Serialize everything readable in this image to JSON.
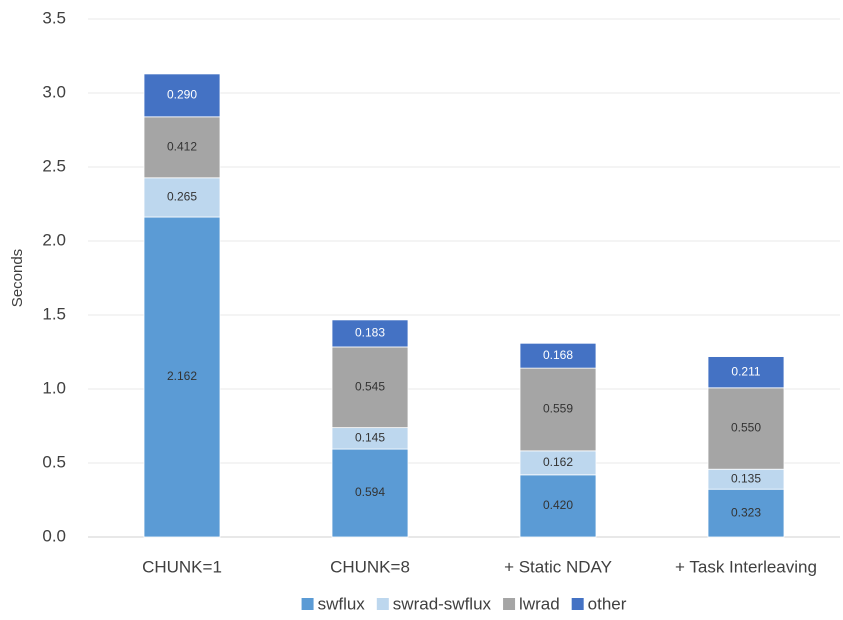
{
  "chart_data": {
    "type": "stacked_bar",
    "y_label": "Seconds",
    "categories": [
      "CHUNK=1",
      "CHUNK=8",
      "+ Static NDAY",
      "+ Task Interleaving"
    ],
    "series": [
      {
        "name": "swflux",
        "color": "#5b9bd5",
        "values": [
          2.162,
          0.594,
          0.42,
          0.323
        ],
        "value_labels": [
          "2.162",
          "0.594",
          "0.420",
          "0.323"
        ]
      },
      {
        "name": "swrad-swflux",
        "color": "#bdd7ee",
        "values": [
          0.265,
          0.145,
          0.162,
          0.135
        ],
        "value_labels": [
          "0.265",
          "0.145",
          "0.162",
          "0.135"
        ]
      },
      {
        "name": "lwrad",
        "color": "#a5a5a5",
        "values": [
          0.412,
          0.545,
          0.559,
          0.55
        ],
        "value_labels": [
          "0.412",
          "0.545",
          "0.559",
          "0.550"
        ]
      },
      {
        "name": "other",
        "color": "#4472c4",
        "values": [
          0.29,
          0.183,
          0.168,
          0.211
        ],
        "value_labels": [
          "0.290",
          "0.183",
          "0.168",
          "0.211"
        ]
      }
    ],
    "ylim": [
      0,
      3.5
    ],
    "yticks": [
      {
        "value": 0,
        "label": "0.0"
      },
      0.5,
      {
        "value": 1,
        "label": "1.0"
      },
      1.5,
      {
        "value": 2,
        "label": "2.0"
      },
      2.5,
      {
        "value": 3,
        "label": "3.0"
      },
      3.5
    ],
    "grid": true,
    "legend": "bottom"
  }
}
